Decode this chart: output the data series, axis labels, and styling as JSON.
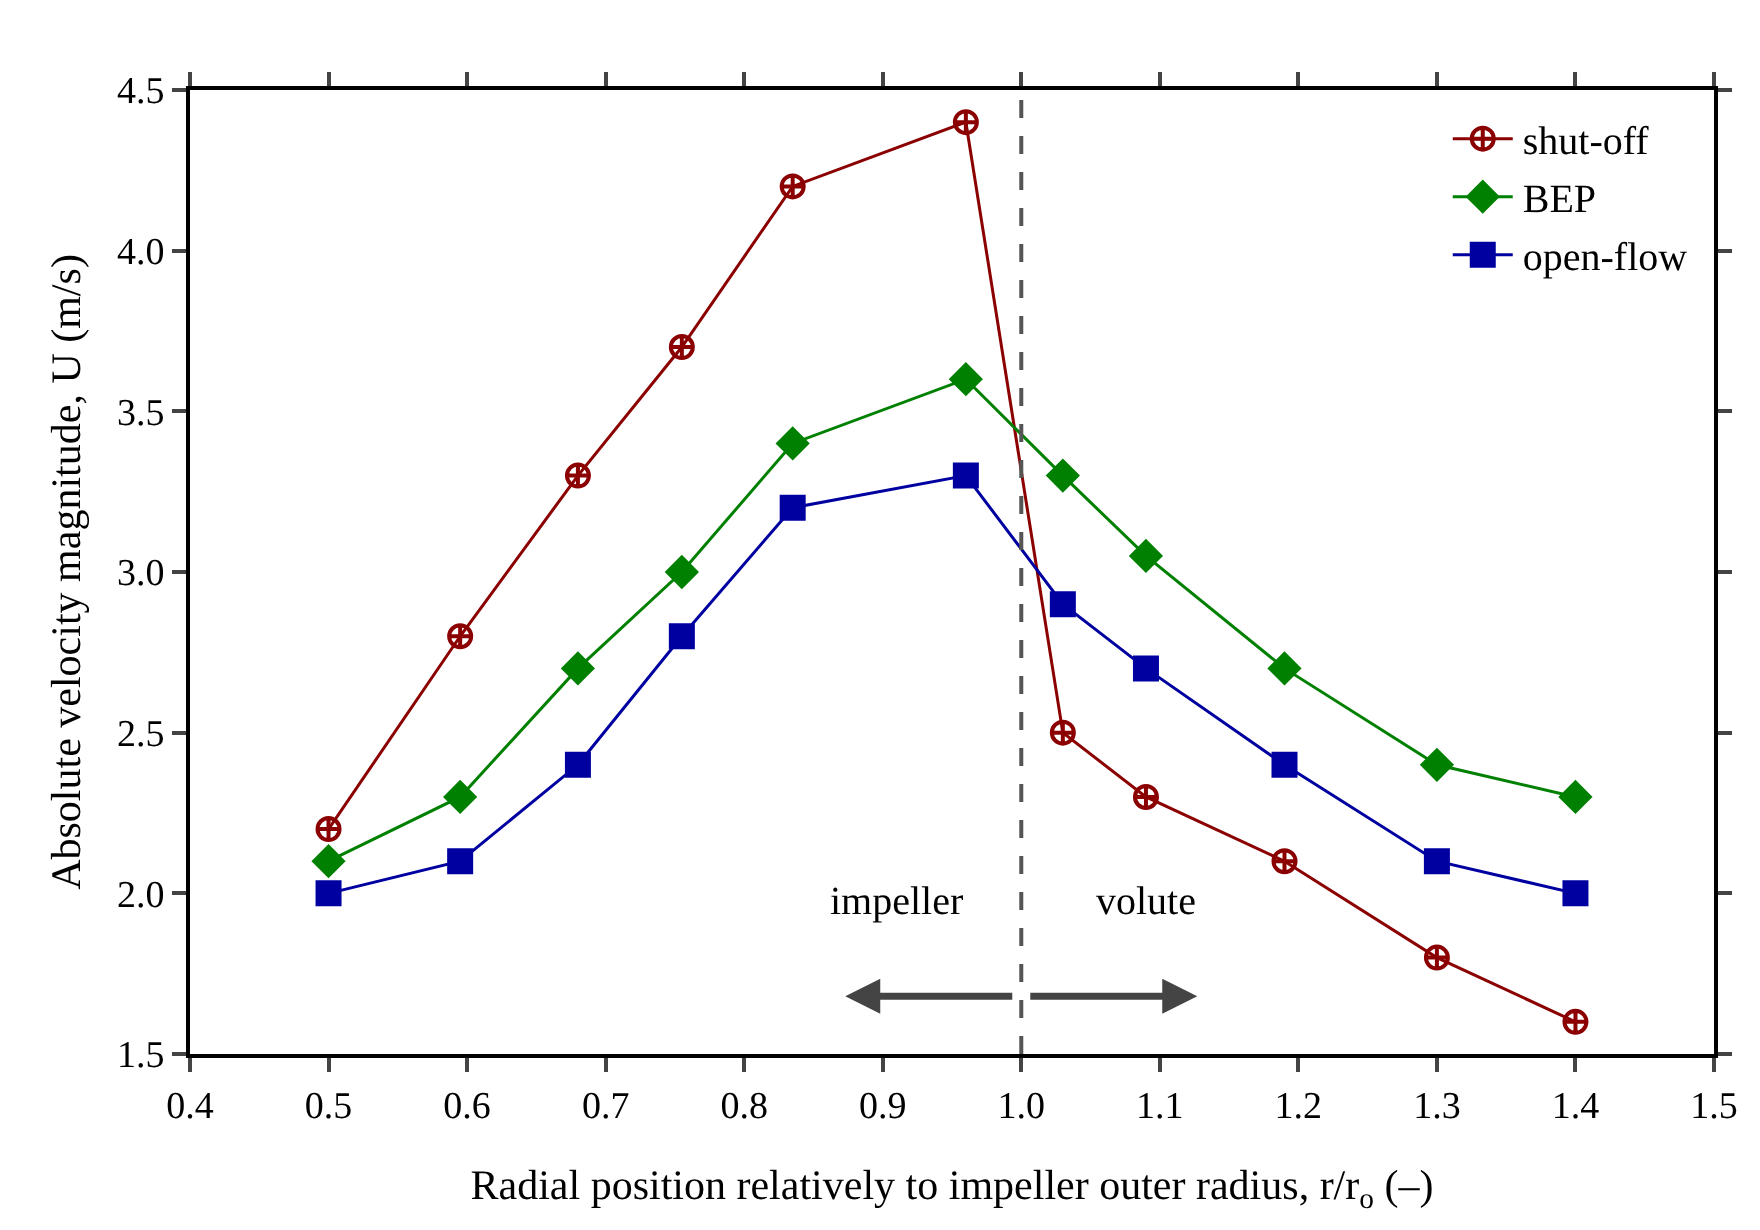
{
  "chart_data": {
    "type": "line",
    "xlabel": "Radial position relatively to impeller outer radius, r/r$_{o}$ (–)",
    "ylabel": "Absolute velocity magnitude, U (m/s)",
    "x": [
      0.5,
      0.595,
      0.68,
      0.755,
      0.835,
      0.96,
      1.03,
      1.09,
      1.19,
      1.3,
      1.4
    ],
    "series": [
      {
        "name": "shut-off",
        "color": "#8b0000",
        "marker": "cross",
        "values": [
          2.2,
          2.8,
          3.3,
          3.7,
          4.2,
          4.4,
          2.5,
          2.3,
          2.1,
          1.8,
          1.6
        ]
      },
      {
        "name": "BEP",
        "color": "#008000",
        "marker": "diamond",
        "values": [
          2.1,
          2.3,
          2.7,
          3.0,
          3.4,
          3.6,
          3.3,
          3.05,
          2.7,
          2.4,
          2.3
        ]
      },
      {
        "name": "open-flow",
        "color": "#0000a0",
        "marker": "square",
        "values": [
          2.0,
          2.1,
          2.4,
          2.8,
          3.2,
          3.3,
          2.9,
          2.7,
          2.4,
          2.1,
          2.0
        ]
      }
    ],
    "xlim": [
      0.4,
      1.5
    ],
    "xticks": [
      0.4,
      0.5,
      0.6,
      0.7,
      0.8,
      0.9,
      {
        "value": 1,
        "label": "1.0"
      },
      1.1,
      1.2,
      1.3,
      1.4,
      1.5
    ],
    "ylim": [
      1.5,
      4.5
    ],
    "yticks": [
      1.5,
      {
        "value": 2,
        "label": "2.0"
      },
      2.5,
      {
        "value": 3,
        "label": "3.0"
      },
      3.5,
      {
        "value": 4,
        "label": "4.0"
      },
      4.5
    ],
    "ref_lines": [
      {
        "axis": "x",
        "value": 1,
        "color": "#555555",
        "line_style": "dashed"
      }
    ],
    "annotations": [
      "impeller",
      "volute"
    ],
    "grid": false,
    "legend": "top right",
    "line_style": "solid"
  }
}
